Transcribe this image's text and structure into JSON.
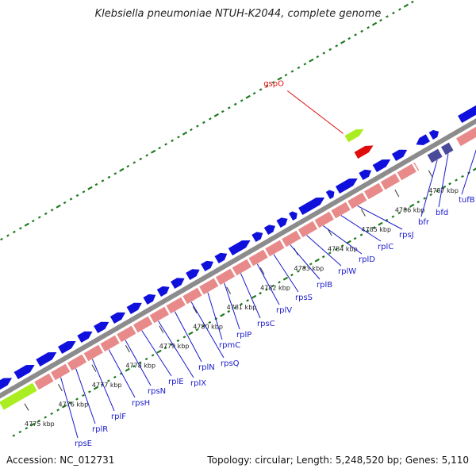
{
  "title": "Klebsiella pneumoniae NTUH-K2044, complete genome",
  "accession": "Accession: NC_012731",
  "summary": "Topology: circular; Length: 5,248,520 bp; Genes: 5,110",
  "colors": {
    "backbone": "#8c8c8c",
    "forward_gene": "#1010dd",
    "reverse_gene": "#e88a8a",
    "rrna_gene": "#aaee22",
    "operon_dark": "#4a4a9a",
    "highlight_red": "#e00d0d",
    "green_tick": "#1d7a1d",
    "label_blue": "#1a1acc"
  },
  "tick_labels": [
    "4775 kbp",
    "4776 kbp",
    "4777 kbp",
    "4778 kbp",
    "4779 kbp",
    "4780 kbp",
    "4781 kbp",
    "4782 kbp",
    "4783 kbp",
    "4784 kbp",
    "4785 kbp",
    "4786 kbp",
    "4787 kbp"
  ],
  "gene_labels": [
    "rpsE",
    "rplR",
    "rplF",
    "rpsH",
    "rpsN",
    "rplE",
    "rplX",
    "rplN",
    "rpsQ",
    "rpmC",
    "rplP",
    "rpsC",
    "rplV",
    "rpsS",
    "rplB",
    "rplW",
    "rplD",
    "rplC",
    "rpsJ",
    "bfr",
    "bfd",
    "tufB"
  ],
  "highlight_label": "gspO"
}
